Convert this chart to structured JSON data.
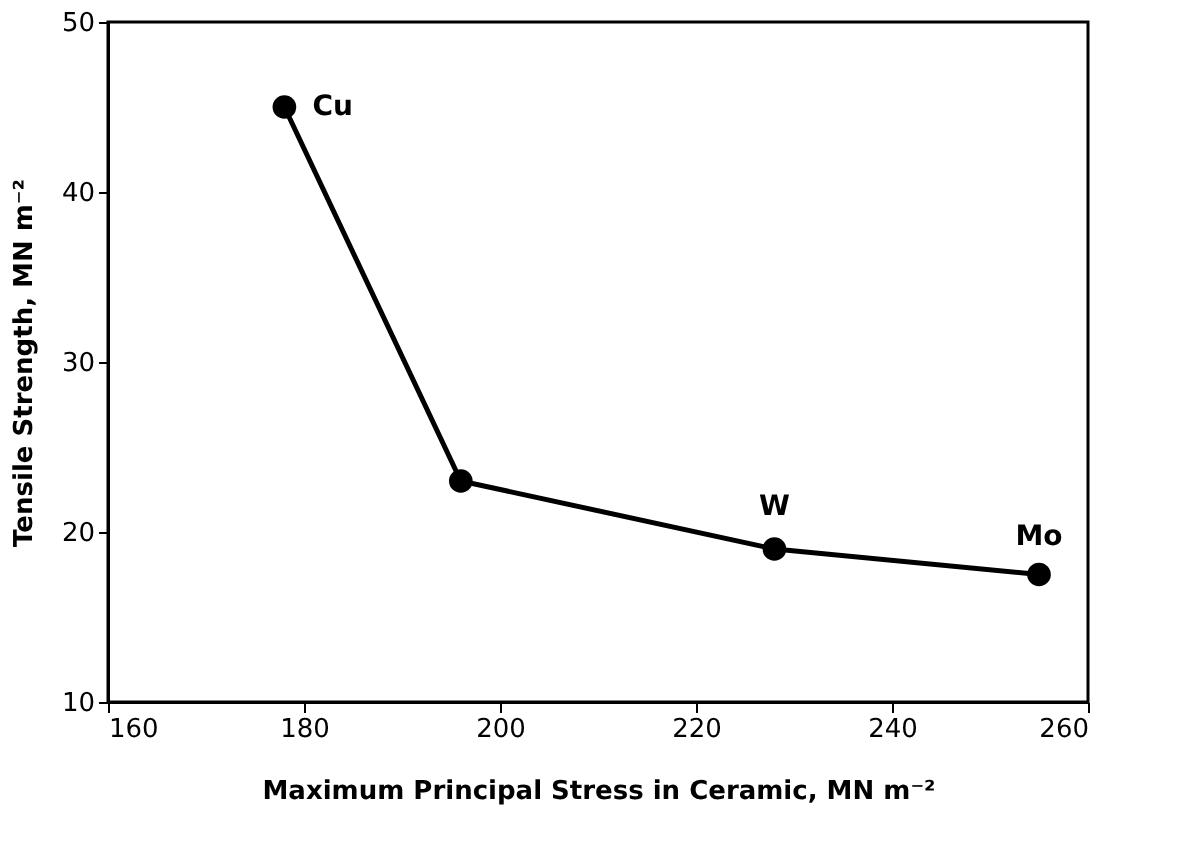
{
  "chart_data": {
    "type": "line",
    "xlabel": "Maximum Principal Stress in Ceramic, MN m⁻²",
    "ylabel": "Tensile Strength, MN m⁻²",
    "x": [
      178,
      196,
      228,
      255
    ],
    "values": [
      45,
      23,
      19,
      17.5
    ],
    "color": "#000000",
    "xlim": [
      160,
      260
    ],
    "xticks": [
      160,
      180,
      200,
      220,
      240,
      260
    ],
    "ylim": [
      10,
      50
    ],
    "yticks": [
      10,
      20,
      30,
      40,
      50
    ],
    "marker": "circle",
    "line_style": "solid",
    "grid": false,
    "annotations": [
      {
        "text": "Cu",
        "x": 178,
        "y": 45
      },
      {
        "text": "W",
        "x": 228,
        "y": 19
      },
      {
        "text": "Mo",
        "x": 255,
        "y": 17.5
      }
    ]
  }
}
